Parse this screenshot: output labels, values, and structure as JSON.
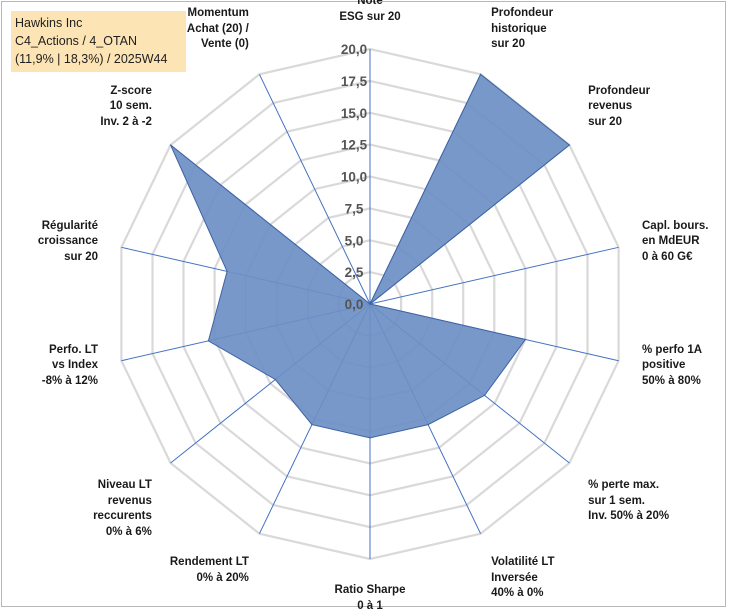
{
  "title_box": {
    "line1": "Hawkins Inc",
    "line2": "C4_Actions / 4_OTAN",
    "line3": "(11,9% | 18,3%) / 2025W44"
  },
  "chart_data": {
    "type": "radar",
    "title": "Hawkins Inc",
    "rmax": 20,
    "ticks": [
      "0,0",
      "2,5",
      "5,0",
      "7,5",
      "10,0",
      "12,5",
      "15,0",
      "17,5",
      "20,0"
    ],
    "axes": [
      {
        "lines": [
          "Note",
          "ESG sur 20"
        ]
      },
      {
        "lines": [
          "Profondeur",
          "historique",
          "sur 20"
        ]
      },
      {
        "lines": [
          "Profondeur",
          "revenus",
          "sur 20"
        ]
      },
      {
        "lines": [
          "Capl. bours.",
          "en MdEUR",
          "0 à 60 G€"
        ]
      },
      {
        "lines": [
          "% perfo 1A",
          "positive",
          "50% à 80%"
        ]
      },
      {
        "lines": [
          "% perte max.",
          "sur 1 sem.",
          "Inv. 50% à 20%"
        ]
      },
      {
        "lines": [
          "Volatilité LT",
          "Inversée",
          "40% à 0%"
        ]
      },
      {
        "lines": [
          "Ratio Sharpe",
          "0 à 1"
        ]
      },
      {
        "lines": [
          "Rendement LT",
          "0% à 20%"
        ]
      },
      {
        "lines": [
          "Niveau LT",
          "revenus",
          "reccurents",
          "0% à 6%"
        ]
      },
      {
        "lines": [
          "Perfo. LT",
          "vs Index",
          "-8% à 12%"
        ]
      },
      {
        "lines": [
          "Régularité",
          "croissance",
          "sur 20"
        ]
      },
      {
        "lines": [
          "Z-score",
          "10 sem.",
          "Inv. 2 à -2"
        ]
      },
      {
        "lines": [
          "Momentum",
          "Achat (20) /",
          "Vente (0)"
        ]
      }
    ],
    "series": [
      {
        "name": "Hawkins Inc",
        "values": [
          0,
          20,
          20,
          0,
          12.5,
          11.5,
          10.5,
          10.5,
          10.5,
          9.5,
          13.0,
          11.5,
          20,
          0
        ],
        "fill": "#6b8fc4",
        "stroke": "#3f63a3"
      }
    ],
    "grid": true,
    "colors": {
      "grid": "#d9d9d9",
      "spoke": "#4472c4",
      "tick": "#555555"
    }
  }
}
